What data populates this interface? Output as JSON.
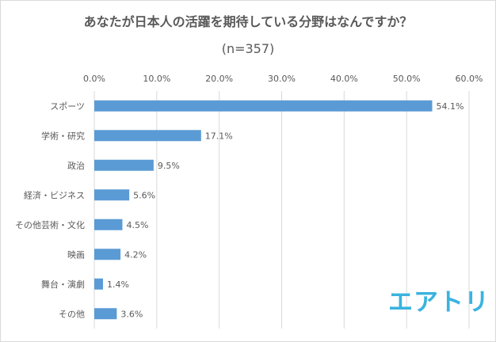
{
  "title": "あなたが日本人の活躍を期待している分野はなんですか？",
  "subtitle": "(n=357)",
  "logo_text": "エアトリ",
  "colors": {
    "bar": "#5b9bd5",
    "grid": "#d9d9d9",
    "text": "#595959",
    "logo": "#3ab3df"
  },
  "chart_data": {
    "type": "bar",
    "orientation": "horizontal",
    "categories": [
      "スポーツ",
      "学術・研究",
      "政治",
      "経済・ビジネス",
      "その他芸術・文化",
      "映画",
      "舞台・演劇",
      "その他"
    ],
    "values": [
      54.1,
      17.1,
      9.5,
      5.6,
      4.5,
      4.2,
      1.4,
      3.6
    ],
    "value_labels": [
      "54.1%",
      "17.1%",
      "9.5%",
      "5.6%",
      "4.5%",
      "4.2%",
      "1.4%",
      "3.6%"
    ],
    "xlim": [
      0,
      60
    ],
    "xticks": [
      0,
      10,
      20,
      30,
      40,
      50,
      60
    ],
    "xtick_labels": [
      "0.0%",
      "10.0%",
      "20.0%",
      "30.0%",
      "40.0%",
      "50.0%",
      "60.0%"
    ],
    "x_axis_position": "top",
    "grid": true,
    "legend": "none"
  }
}
